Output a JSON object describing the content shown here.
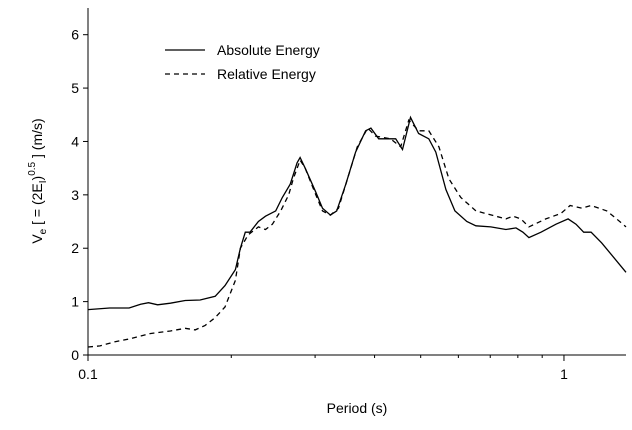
{
  "chart_data": {
    "type": "line",
    "x_label": "Period (s)",
    "y_label_parts": [
      "V",
      "e",
      " [ = (2E",
      "I",
      ")",
      "0.5",
      " ]   (m/s)"
    ],
    "xscale": "log",
    "xlim": [
      0.1,
      1.35
    ],
    "xticks": [
      0.1,
      1
    ],
    "xminor_ticks": [
      0.2,
      0.3,
      0.4,
      0.5,
      0.6,
      0.7,
      0.8,
      0.9
    ],
    "ylim": [
      0,
      6.5
    ],
    "yticks": [
      0,
      1,
      2,
      3,
      4,
      5,
      6
    ],
    "legend": "upper-left",
    "series": [
      {
        "name": "Absolute Energy",
        "color": "#000000",
        "dash": "solid",
        "x": [
          0.1,
          0.111,
          0.122,
          0.129,
          0.134,
          0.14,
          0.149,
          0.16,
          0.172,
          0.185,
          0.194,
          0.204,
          0.209,
          0.214,
          0.219,
          0.228,
          0.236,
          0.248,
          0.256,
          0.266,
          0.275,
          0.279,
          0.286,
          0.301,
          0.311,
          0.323,
          0.333,
          0.348,
          0.365,
          0.383,
          0.393,
          0.408,
          0.422,
          0.443,
          0.458,
          0.476,
          0.495,
          0.52,
          0.538,
          0.565,
          0.59,
          0.625,
          0.653,
          0.702,
          0.755,
          0.793,
          0.82,
          0.844,
          0.895,
          0.962,
          1.02,
          1.06,
          1.1,
          1.14,
          1.2,
          1.35
        ],
        "values": [
          0.85,
          0.88,
          0.88,
          0.95,
          0.98,
          0.94,
          0.97,
          1.02,
          1.03,
          1.1,
          1.3,
          1.6,
          2.0,
          2.3,
          2.3,
          2.5,
          2.6,
          2.7,
          2.95,
          3.2,
          3.6,
          3.7,
          3.5,
          3.05,
          2.75,
          2.62,
          2.7,
          3.2,
          3.8,
          4.2,
          4.25,
          4.05,
          4.05,
          4.05,
          3.85,
          4.45,
          4.15,
          4.05,
          3.8,
          3.1,
          2.7,
          2.5,
          2.42,
          2.4,
          2.35,
          2.38,
          2.3,
          2.2,
          2.3,
          2.45,
          2.55,
          2.45,
          2.3,
          2.3,
          2.1,
          1.55
        ]
      },
      {
        "name": "Relative Energy",
        "color": "#000000",
        "dash": "dashed",
        "x": [
          0.1,
          0.106,
          0.114,
          0.122,
          0.135,
          0.149,
          0.16,
          0.168,
          0.176,
          0.185,
          0.194,
          0.204,
          0.209,
          0.217,
          0.228,
          0.236,
          0.244,
          0.254,
          0.264,
          0.27,
          0.279,
          0.286,
          0.301,
          0.311,
          0.323,
          0.336,
          0.351,
          0.368,
          0.387,
          0.402,
          0.432,
          0.454,
          0.472,
          0.495,
          0.52,
          0.546,
          0.573,
          0.607,
          0.653,
          0.719,
          0.755,
          0.781,
          0.812,
          0.844,
          0.916,
          0.985,
          1.03,
          1.09,
          1.14,
          1.23,
          1.29,
          1.35
        ],
        "values": [
          0.15,
          0.17,
          0.25,
          0.3,
          0.4,
          0.45,
          0.5,
          0.47,
          0.55,
          0.7,
          0.9,
          1.4,
          2.0,
          2.25,
          2.4,
          2.35,
          2.45,
          2.7,
          3.0,
          3.3,
          3.65,
          3.5,
          3.0,
          2.7,
          2.62,
          2.75,
          3.3,
          3.9,
          4.25,
          4.1,
          4.05,
          3.9,
          4.4,
          4.2,
          4.2,
          3.9,
          3.3,
          2.95,
          2.7,
          2.6,
          2.55,
          2.6,
          2.55,
          2.4,
          2.55,
          2.65,
          2.8,
          2.75,
          2.8,
          2.7,
          2.55,
          2.4
        ]
      }
    ]
  }
}
